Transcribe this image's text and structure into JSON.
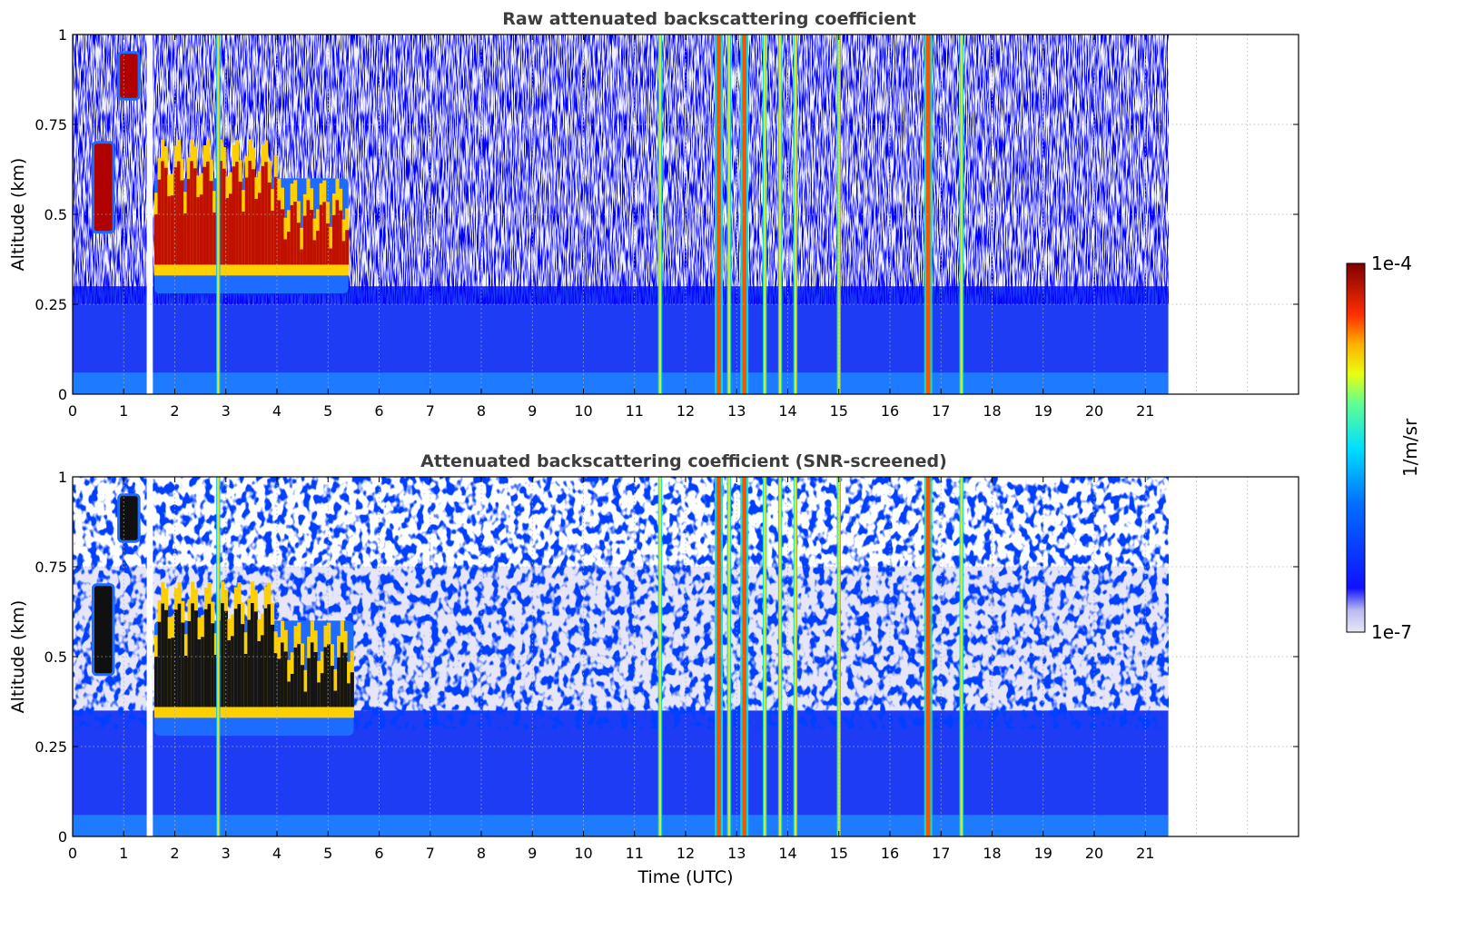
{
  "chart_data": [
    {
      "type": "heatmap",
      "title": "Raw attenuated backscattering coefficient",
      "xlabel": "",
      "ylabel": "Altitude (km)",
      "xlim": [
        0,
        24
      ],
      "ylim": [
        0,
        1
      ],
      "x_ticks": [
        "0",
        "1",
        "2",
        "3",
        "4",
        "5",
        "6",
        "7",
        "8",
        "9",
        "10",
        "11",
        "12",
        "13",
        "14",
        "15",
        "16",
        "17",
        "18",
        "19",
        "20",
        "21"
      ],
      "y_ticks": [
        "0",
        "0.25",
        "0.5",
        "0.75",
        "1"
      ],
      "grid": true,
      "data_time_range": [
        0,
        21.45
      ],
      "gap_time": 1.45,
      "features": {
        "surface_layer": {
          "altitude_top": 0.3,
          "level": "blue"
        },
        "aerosol_layer_early": {
          "time_range": [
            1.6,
            5.4
          ],
          "altitude_range": [
            0.3,
            0.75
          ],
          "level": "high"
        },
        "cloud_patches": [
          {
            "time_range": [
              0.4,
              0.8
            ],
            "altitude_range": [
              0.45,
              0.7
            ]
          },
          {
            "time_range": [
              0.9,
              1.3
            ],
            "altitude_range": [
              0.82,
              0.95
            ]
          }
        ],
        "vertical_bands": [
          2.85,
          11.5,
          12.65,
          12.85,
          13.15,
          13.55,
          13.85,
          14.15,
          15.0,
          16.75,
          17.4
        ]
      }
    },
    {
      "type": "heatmap",
      "title": "Attenuated backscattering coefficient (SNR-screened)",
      "xlabel": "Time (UTC)",
      "ylabel": "Altitude (km)",
      "xlim": [
        0,
        24
      ],
      "ylim": [
        0,
        1
      ],
      "x_ticks": [
        "0",
        "1",
        "2",
        "3",
        "4",
        "5",
        "6",
        "7",
        "8",
        "9",
        "10",
        "11",
        "12",
        "13",
        "14",
        "15",
        "16",
        "17",
        "18",
        "19",
        "20",
        "21"
      ],
      "y_ticks": [
        "0",
        "0.25",
        "0.5",
        "0.75",
        "1"
      ],
      "grid": true,
      "data_time_range": [
        0,
        21.45
      ],
      "gap_time": 1.45,
      "features": {
        "surface_layer": {
          "altitude_top": 0.35,
          "level": "blue"
        },
        "aerosol_layer_early": {
          "time_range": [
            1.6,
            5.5
          ],
          "altitude_range": [
            0.3,
            0.75
          ],
          "level": "saturated"
        },
        "vertical_bands": [
          2.85,
          11.5,
          12.65,
          12.85,
          13.15,
          13.55,
          13.85,
          14.15,
          15.0,
          16.75,
          17.4
        ]
      }
    }
  ],
  "colorbar": {
    "label": "1/m/sr",
    "max_label": "1e-4",
    "min_label": "1e-7",
    "scale": "log",
    "colormap": "jet",
    "colors": [
      "#e8e8f8",
      "#0000ff",
      "#00a0ff",
      "#00ffff",
      "#ffff00",
      "#ff8000",
      "#ff0000",
      "#800000"
    ]
  }
}
